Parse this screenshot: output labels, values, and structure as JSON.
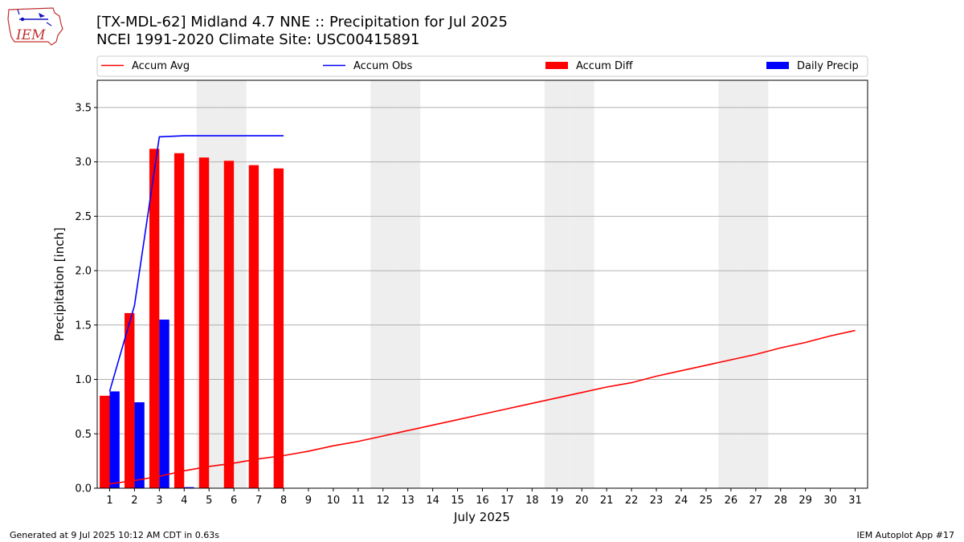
{
  "header": {
    "title_line1": "[TX-MDL-62] Midland 4.7 NNE :: Precipitation for Jul 2025",
    "title_line2": "NCEI 1991-2020 Climate Site: USC00415891"
  },
  "logo": {
    "text": "IEM"
  },
  "footer": {
    "generated": "Generated at 9 Jul 2025 10:12 AM CDT in 0.63s",
    "app": "IEM Autoplot App #17"
  },
  "colors": {
    "avg": "#ff0000",
    "obs": "#0000ff",
    "diff": "#ff0000",
    "daily": "#0000ff",
    "weekend": "#eeeeee",
    "grid": "#b0b0b0"
  },
  "chart_data": {
    "type": "bar",
    "xlabel": "July 2025",
    "ylabel": "Precipitation [inch]",
    "xlim": [
      0.5,
      31.5
    ],
    "ylim": [
      0,
      3.75
    ],
    "yticks": [
      0.0,
      0.5,
      1.0,
      1.5,
      2.0,
      2.5,
      3.0,
      3.5
    ],
    "ytick_labels": [
      "0.0",
      "0.5",
      "1.0",
      "1.5",
      "2.0",
      "2.5",
      "3.0",
      "3.5"
    ],
    "days": [
      1,
      2,
      3,
      4,
      5,
      6,
      7,
      8,
      9,
      10,
      11,
      12,
      13,
      14,
      15,
      16,
      17,
      18,
      19,
      20,
      21,
      22,
      23,
      24,
      25,
      26,
      27,
      28,
      29,
      30,
      31
    ],
    "weekend_days": [
      5,
      6,
      12,
      13,
      19,
      20,
      26,
      27
    ],
    "grid": "y",
    "legend_position": "top, above plot",
    "series": [
      {
        "name": "Accum Avg",
        "kind": "line",
        "values": [
          0.04,
          0.07,
          0.11,
          0.16,
          0.2,
          0.23,
          0.27,
          0.3,
          0.34,
          0.39,
          0.43,
          0.48,
          0.53,
          0.58,
          0.63,
          0.68,
          0.73,
          0.78,
          0.83,
          0.88,
          0.93,
          0.97,
          1.03,
          1.08,
          1.13,
          1.18,
          1.23,
          1.29,
          1.34,
          1.4,
          1.45
        ]
      },
      {
        "name": "Accum Obs",
        "kind": "line",
        "values": [
          0.89,
          1.68,
          3.23,
          3.24,
          3.24,
          3.24,
          3.24,
          3.24
        ]
      },
      {
        "name": "Accum Diff",
        "kind": "bar",
        "values": [
          0.85,
          1.61,
          3.12,
          3.08,
          3.04,
          3.01,
          2.97,
          2.94
        ]
      },
      {
        "name": "Daily Precip",
        "kind": "bar",
        "values": [
          0.89,
          0.79,
          1.55,
          0.01,
          0,
          0,
          0,
          0
        ]
      }
    ]
  }
}
